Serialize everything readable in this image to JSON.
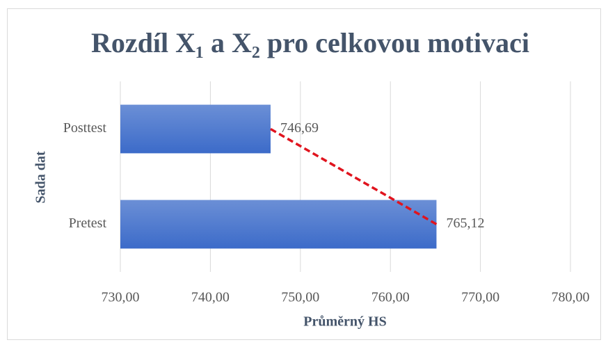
{
  "chart_data": {
    "type": "barh",
    "title": "Rozdíl X₁ a X₂ pro celkovou motivaci",
    "x_label": "Průměrný HS",
    "y_label": "Sada dat",
    "categories": [
      "Posttest",
      "Pretest"
    ],
    "values": [
      746.69,
      765.12
    ],
    "value_labels": [
      "746,69",
      "765,12"
    ],
    "color": "#4472c4",
    "trend_color": "#e0141e",
    "xlim": [
      730,
      780
    ],
    "xticks": [
      {
        "value": 730,
        "label": "730,00"
      },
      {
        "value": 740,
        "label": "740,00"
      },
      {
        "value": 750,
        "label": "750,00"
      },
      {
        "value": 760,
        "label": "760,00"
      },
      {
        "value": 770,
        "label": "770,00"
      },
      {
        "value": 780,
        "label": "780,00"
      }
    ],
    "grid": true
  }
}
